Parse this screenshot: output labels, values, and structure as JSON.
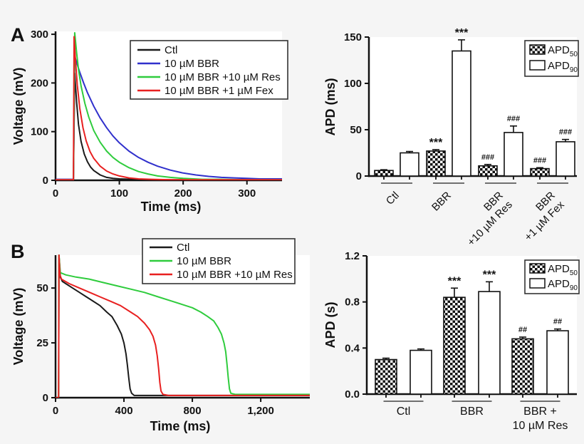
{
  "figure_background": "#f5f5f5",
  "plot_background": "#ffffff",
  "axis_color": "#111111",
  "panels": {
    "a": "A",
    "b": "B"
  },
  "chart_data": [
    {
      "type": "line",
      "panel": "A",
      "xlabel": "Time (ms)",
      "ylabel": "Voltage (mV)",
      "xlim": [
        0,
        355
      ],
      "ylim": [
        0,
        306
      ],
      "xticks": [
        0,
        100,
        200,
        300
      ],
      "xtick_labels": [
        "0",
        "100",
        "200",
        "300"
      ],
      "yticks": [
        0,
        100,
        200,
        300
      ],
      "ytick_labels": [
        "0",
        "100",
        "200",
        "300"
      ],
      "legend_position": "top-right",
      "series": [
        {
          "name": "Ctl",
          "color": "#1a1a1a",
          "points": [
            [
              0,
              1
            ],
            [
              28,
              1
            ],
            [
              30,
              220
            ],
            [
              33,
              160
            ],
            [
              36,
              115
            ],
            [
              40,
              80
            ],
            [
              45,
              54
            ],
            [
              50,
              38
            ],
            [
              55,
              27
            ],
            [
              60,
              20
            ],
            [
              70,
              11
            ],
            [
              80,
              6
            ],
            [
              90,
              4
            ],
            [
              100,
              3
            ],
            [
              120,
              2
            ],
            [
              150,
              1
            ],
            [
              200,
              1
            ],
            [
              250,
              1
            ],
            [
              300,
              1
            ],
            [
              355,
              1
            ]
          ]
        },
        {
          "name": "10 µM BBR",
          "color": "#3030cc",
          "points": [
            [
              0,
              2
            ],
            [
              28,
              2
            ],
            [
              30,
              255
            ],
            [
              34,
              238
            ],
            [
              38,
              222
            ],
            [
              44,
              200
            ],
            [
              50,
              180
            ],
            [
              60,
              152
            ],
            [
              70,
              128
            ],
            [
              80,
              108
            ],
            [
              90,
              91
            ],
            [
              100,
              77
            ],
            [
              115,
              60
            ],
            [
              130,
              47
            ],
            [
              145,
              37
            ],
            [
              160,
              29
            ],
            [
              180,
              21
            ],
            [
              200,
              15
            ],
            [
              220,
              11
            ],
            [
              240,
              8
            ],
            [
              260,
              6
            ],
            [
              280,
              5
            ],
            [
              300,
              4
            ],
            [
              320,
              3
            ],
            [
              355,
              3
            ]
          ]
        },
        {
          "name": "10 µM BBR +10 µM Res",
          "color": "#2fcc3d",
          "points": [
            [
              0,
              1
            ],
            [
              28,
              1
            ],
            [
              30,
              303
            ],
            [
              33,
              262
            ],
            [
              36,
              228
            ],
            [
              40,
              194
            ],
            [
              46,
              158
            ],
            [
              52,
              130
            ],
            [
              60,
              102
            ],
            [
              70,
              78
            ],
            [
              80,
              60
            ],
            [
              90,
              47
            ],
            [
              100,
              37
            ],
            [
              115,
              26
            ],
            [
              130,
              18
            ],
            [
              145,
              13
            ],
            [
              160,
              9
            ],
            [
              180,
              6
            ],
            [
              200,
              4
            ],
            [
              230,
              2
            ],
            [
              260,
              2
            ],
            [
              300,
              1
            ],
            [
              355,
              1
            ]
          ]
        },
        {
          "name": "10 µM BBR +1 µM Fex",
          "color": "#e82020",
          "points": [
            [
              0,
              1
            ],
            [
              28,
              1
            ],
            [
              29,
              295
            ],
            [
              31,
              250
            ],
            [
              34,
              196
            ],
            [
              38,
              148
            ],
            [
              43,
              108
            ],
            [
              48,
              81
            ],
            [
              54,
              59
            ],
            [
              60,
              45
            ],
            [
              70,
              29
            ],
            [
              80,
              19
            ],
            [
              90,
              13
            ],
            [
              100,
              9
            ],
            [
              115,
              5
            ],
            [
              130,
              3
            ],
            [
              150,
              2
            ],
            [
              180,
              1
            ],
            [
              220,
              1
            ],
            [
              260,
              1
            ],
            [
              300,
              1
            ],
            [
              355,
              1
            ]
          ]
        }
      ]
    },
    {
      "type": "bar",
      "panel": "A",
      "ylabel": "APD (ms)",
      "ylim": [
        0,
        150
      ],
      "yticks": [
        0,
        50,
        100,
        150
      ],
      "ytick_labels": [
        "0",
        "50",
        "100",
        "150"
      ],
      "category_rotation": -45,
      "categories": [
        [
          "Ctl"
        ],
        [
          "BBR"
        ],
        [
          "BBR",
          "+10 µM Res"
        ],
        [
          "BBR",
          "+1 µM Fex"
        ]
      ],
      "series": [
        {
          "name": "APD",
          "sub": "50",
          "pattern": "checker",
          "values": [
            6,
            27,
            11,
            8
          ],
          "errors": [
            0.8,
            1.5,
            1.5,
            1
          ],
          "annotations": [
            "",
            "***",
            "###",
            "###"
          ]
        },
        {
          "name": "APD",
          "sub": "90",
          "pattern": "plain",
          "values": [
            25,
            135,
            47,
            37
          ],
          "errors": [
            1.5,
            12,
            7,
            2.5
          ],
          "annotations": [
            "",
            "***",
            "###",
            "###"
          ]
        }
      ],
      "legend": [
        {
          "label": "APD",
          "sub": "50",
          "pattern": "checker"
        },
        {
          "label": "APD",
          "sub": "90",
          "pattern": "plain"
        }
      ]
    },
    {
      "type": "line",
      "panel": "B",
      "xlabel": "Time (ms)",
      "ylabel": "Voltage (mV)",
      "xlim": [
        0,
        1487
      ],
      "ylim": [
        0,
        65
      ],
      "xticks": [
        0,
        400,
        800,
        1200
      ],
      "xtick_labels": [
        "0",
        "400",
        "800",
        "1,200"
      ],
      "yticks": [
        0,
        25,
        50
      ],
      "ytick_labels": [
        "0",
        "25",
        "50"
      ],
      "legend_position": "top-right",
      "series": [
        {
          "name": "Ctl",
          "color": "#1a1a1a",
          "points": [
            [
              0,
              0
            ],
            [
              18,
              0
            ],
            [
              20,
              65
            ],
            [
              24,
              60
            ],
            [
              28,
              55
            ],
            [
              40,
              53
            ],
            [
              60,
              52
            ],
            [
              100,
              50
            ],
            [
              140,
              48
            ],
            [
              180,
              46
            ],
            [
              220,
              44
            ],
            [
              260,
              42
            ],
            [
              300,
              39
            ],
            [
              330,
              37
            ],
            [
              360,
              33
            ],
            [
              385,
              29
            ],
            [
              400,
              25
            ],
            [
              412,
              20
            ],
            [
              420,
              15
            ],
            [
              428,
              9
            ],
            [
              436,
              4
            ],
            [
              445,
              2
            ],
            [
              460,
              1
            ],
            [
              500,
              1
            ],
            [
              600,
              1
            ],
            [
              700,
              1
            ],
            [
              800,
              1
            ],
            [
              900,
              1
            ],
            [
              1000,
              1
            ],
            [
              1100,
              1
            ],
            [
              1200,
              1
            ],
            [
              1300,
              1
            ],
            [
              1400,
              1
            ],
            [
              1487,
              1
            ]
          ]
        },
        {
          "name": "10 µM BBR",
          "color": "#2fcc3d",
          "points": [
            [
              0,
              0
            ],
            [
              18,
              0
            ],
            [
              20,
              65
            ],
            [
              28,
              57
            ],
            [
              60,
              56
            ],
            [
              120,
              55
            ],
            [
              200,
              54
            ],
            [
              280,
              52.5
            ],
            [
              360,
              51
            ],
            [
              440,
              49.5
            ],
            [
              520,
              48
            ],
            [
              600,
              46
            ],
            [
              680,
              44
            ],
            [
              740,
              42.5
            ],
            [
              800,
              41
            ],
            [
              850,
              39
            ],
            [
              890,
              37
            ],
            [
              925,
              35
            ],
            [
              950,
              32
            ],
            [
              970,
              29
            ],
            [
              985,
              25
            ],
            [
              995,
              21
            ],
            [
              1003,
              15
            ],
            [
              1010,
              9
            ],
            [
              1017,
              4
            ],
            [
              1025,
              2
            ],
            [
              1050,
              1.5
            ],
            [
              1150,
              1.5
            ],
            [
              1250,
              1.5
            ],
            [
              1350,
              1.5
            ],
            [
              1487,
              1.5
            ]
          ]
        },
        {
          "name": "10 µM BBR +10 µM Res",
          "color": "#e82020",
          "points": [
            [
              0,
              0
            ],
            [
              18,
              0
            ],
            [
              20,
              65
            ],
            [
              26,
              56
            ],
            [
              35,
              54
            ],
            [
              80,
              52
            ],
            [
              140,
              50
            ],
            [
              200,
              48
            ],
            [
              260,
              46
            ],
            [
              320,
              44
            ],
            [
              380,
              42
            ],
            [
              440,
              39
            ],
            [
              480,
              37
            ],
            [
              520,
              34
            ],
            [
              550,
              31
            ],
            [
              570,
              28
            ],
            [
              585,
              24
            ],
            [
              595,
              19
            ],
            [
              603,
              13
            ],
            [
              610,
              7
            ],
            [
              617,
              3
            ],
            [
              628,
              1.5
            ],
            [
              660,
              1
            ],
            [
              750,
              1
            ],
            [
              850,
              1
            ],
            [
              1000,
              1
            ],
            [
              1150,
              1
            ],
            [
              1300,
              1
            ],
            [
              1487,
              1
            ]
          ]
        }
      ]
    },
    {
      "type": "bar",
      "panel": "B",
      "ylabel": "APD (s)",
      "ylim": [
        0,
        1.2
      ],
      "yticks": [
        0,
        0.4,
        0.8,
        1.2
      ],
      "ytick_labels": [
        "0.0",
        "0.4",
        "0.8",
        "1.2"
      ],
      "category_rotation": 0,
      "categories": [
        [
          "Ctl"
        ],
        [
          "BBR"
        ],
        [
          "BBR +",
          "10 µM Res"
        ]
      ],
      "series": [
        {
          "name": "APD",
          "sub": "50",
          "pattern": "checker",
          "values": [
            0.3,
            0.84,
            0.48
          ],
          "errors": [
            0.012,
            0.08,
            0.015
          ],
          "annotations": [
            "",
            "***",
            "##"
          ]
        },
        {
          "name": "APD",
          "sub": "90",
          "pattern": "plain",
          "values": [
            0.38,
            0.89,
            0.55
          ],
          "errors": [
            0.012,
            0.085,
            0.015
          ],
          "annotations": [
            "",
            "***",
            "##"
          ]
        }
      ],
      "legend": [
        {
          "label": "APD",
          "sub": "50",
          "pattern": "checker"
        },
        {
          "label": "APD",
          "sub": "90",
          "pattern": "plain"
        }
      ]
    }
  ]
}
